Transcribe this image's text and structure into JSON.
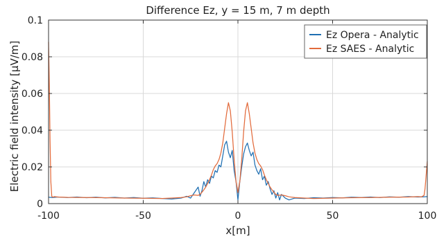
{
  "chart_data": {
    "type": "line",
    "title": "Difference Ez, y = 15 m, 7 m depth",
    "xlabel": "x[m]",
    "ylabel": "Electric field intensity [μV/m]",
    "xlim": [
      -100,
      100
    ],
    "ylim": [
      0,
      0.1
    ],
    "grid": true,
    "legend_position": "top-right",
    "x_ticks": [
      "-100",
      "-50",
      "0",
      "50",
      "100"
    ],
    "y_ticks": [
      "0",
      "0.02",
      "0.04",
      "0.06",
      "0.08",
      "0.1"
    ],
    "series": [
      {
        "name": "Ez Opera - Analytic",
        "color": "#1f6fb2",
        "x": [
          -100,
          -98,
          -95,
          -90,
          -85,
          -80,
          -75,
          -70,
          -65,
          -60,
          -55,
          -50,
          -45,
          -40,
          -35,
          -30,
          -27,
          -25,
          -23,
          -21,
          -20,
          -19,
          -18,
          -17,
          -16,
          -15,
          -14,
          -13,
          -12,
          -11,
          -10,
          -9,
          -8,
          -7,
          -6,
          -5,
          -4,
          -3,
          -2,
          -1,
          0,
          1,
          2,
          3,
          4,
          5,
          6,
          7,
          8,
          9,
          10,
          11,
          12,
          13,
          14,
          15,
          16,
          17,
          18,
          19,
          20,
          21,
          22,
          23,
          25,
          27,
          30,
          35,
          40,
          45,
          50,
          55,
          60,
          65,
          70,
          75,
          80,
          85,
          90,
          95,
          98,
          100
        ],
        "y": [
          0.0035,
          0.0033,
          0.0036,
          0.0033,
          0.0036,
          0.0032,
          0.0035,
          0.0031,
          0.0034,
          0.003,
          0.0033,
          0.0029,
          0.0031,
          0.0028,
          0.0025,
          0.003,
          0.004,
          0.003,
          0.006,
          0.009,
          0.004,
          0.007,
          0.012,
          0.009,
          0.013,
          0.011,
          0.015,
          0.014,
          0.018,
          0.017,
          0.021,
          0.02,
          0.026,
          0.032,
          0.034,
          0.028,
          0.025,
          0.029,
          0.018,
          0.012,
          0.002,
          0.012,
          0.02,
          0.027,
          0.031,
          0.033,
          0.029,
          0.026,
          0.028,
          0.021,
          0.018,
          0.016,
          0.019,
          0.013,
          0.015,
          0.01,
          0.012,
          0.008,
          0.005,
          0.007,
          0.003,
          0.006,
          0.002,
          0.005,
          0.003,
          0.002,
          0.003,
          0.0028,
          0.0032,
          0.003,
          0.0033,
          0.0031,
          0.0035,
          0.0033,
          0.0036,
          0.0033,
          0.0037,
          0.0035,
          0.0038,
          0.0036,
          0.0037,
          0.0038
        ]
      },
      {
        "name": "Ez SAES - Analytic",
        "color": "#e26a3b",
        "x": [
          -100,
          -99.6,
          -99.2,
          -98.8,
          -98.3,
          -97.8,
          -97,
          -95,
          -90,
          -80,
          -70,
          -60,
          -50,
          -40,
          -35,
          -30,
          -27,
          -25,
          -23,
          -21,
          -20,
          -19,
          -18,
          -17,
          -16,
          -15,
          -14,
          -13,
          -12,
          -11,
          -10,
          -9,
          -8,
          -7,
          -6,
          -5,
          -4,
          -3,
          -2,
          -1,
          0,
          1,
          2,
          3,
          4,
          5,
          6,
          7,
          8,
          9,
          10,
          11,
          12,
          13,
          14,
          15,
          16,
          17,
          18,
          19,
          20,
          21,
          23,
          25,
          27,
          30,
          35,
          40,
          50,
          60,
          70,
          80,
          90,
          95,
          97,
          98.3,
          98.8,
          99.2,
          99.6,
          100
        ],
        "y": [
          0.088,
          0.065,
          0.034,
          0.012,
          0.004,
          0.0035,
          0.0038,
          0.0036,
          0.0034,
          0.0033,
          0.0032,
          0.003,
          0.0029,
          0.0028,
          0.003,
          0.0033,
          0.0037,
          0.0043,
          0.0047,
          0.0045,
          0.005,
          0.0062,
          0.0075,
          0.009,
          0.011,
          0.013,
          0.0155,
          0.0185,
          0.0205,
          0.0218,
          0.024,
          0.0275,
          0.033,
          0.041,
          0.049,
          0.055,
          0.0505,
          0.039,
          0.024,
          0.012,
          0.006,
          0.012,
          0.024,
          0.039,
          0.0505,
          0.055,
          0.049,
          0.041,
          0.033,
          0.0275,
          0.024,
          0.0218,
          0.0205,
          0.0185,
          0.0155,
          0.013,
          0.011,
          0.009,
          0.0075,
          0.0062,
          0.005,
          0.0045,
          0.0047,
          0.0043,
          0.0037,
          0.0033,
          0.003,
          0.0028,
          0.003,
          0.0032,
          0.0033,
          0.0035,
          0.0036,
          0.0038,
          0.0037,
          0.0045,
          0.008,
          0.013,
          0.018,
          0.023
        ]
      }
    ]
  }
}
